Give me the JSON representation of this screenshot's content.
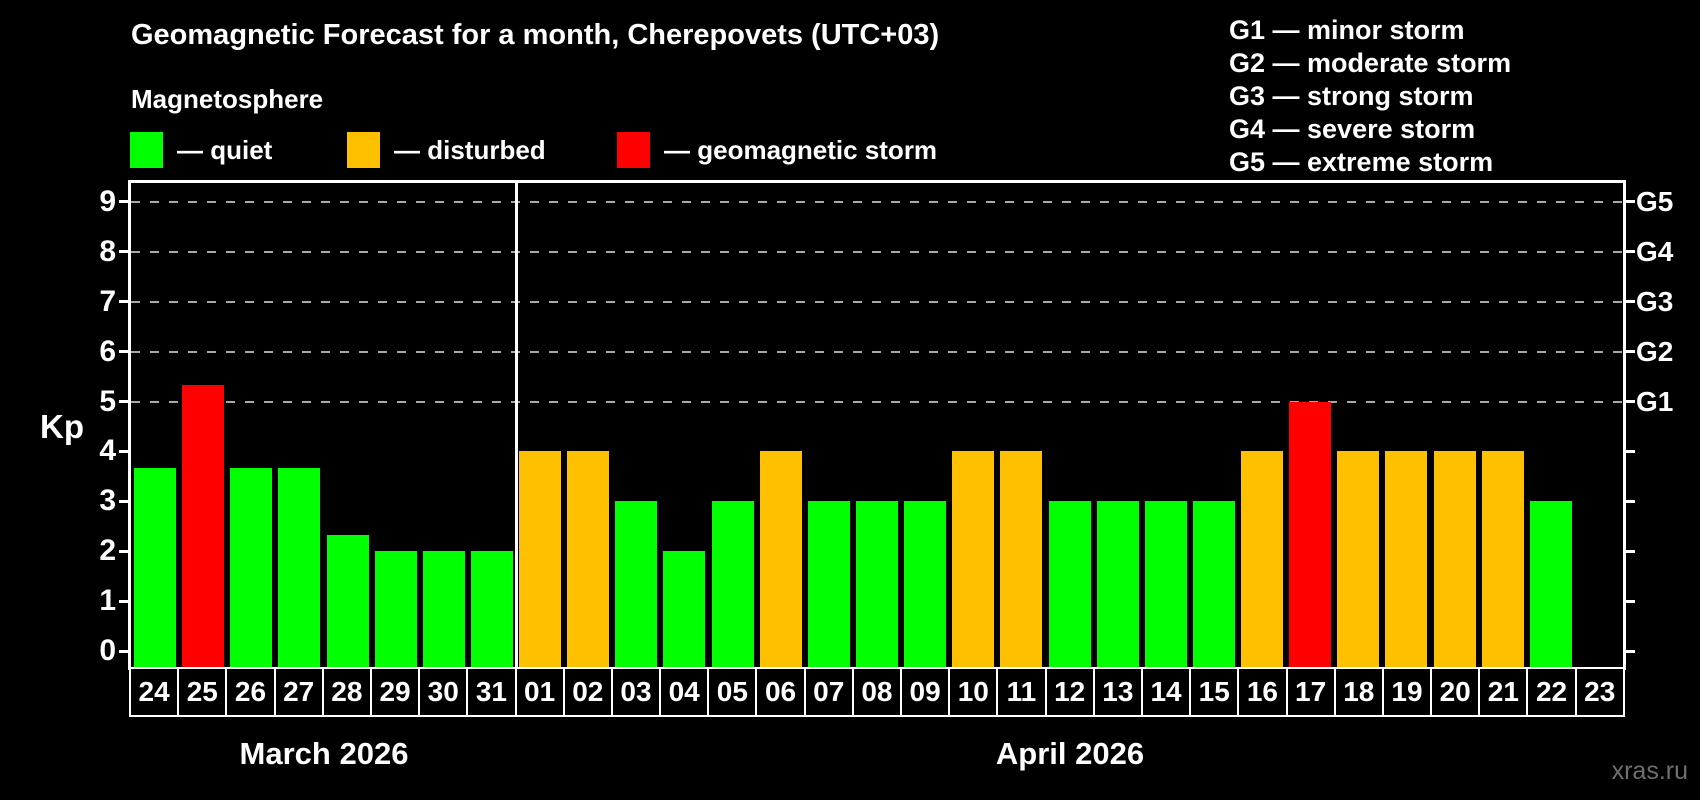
{
  "title": "Geomagnetic Forecast for a month, Cherepovets (UTC+03)",
  "subtitle": "Magnetosphere",
  "legend": {
    "items": [
      {
        "key": "quiet",
        "label": "— quiet",
        "color": "#00ff00"
      },
      {
        "key": "disturbed",
        "label": "— disturbed",
        "color": "#ffc000"
      },
      {
        "key": "storm",
        "label": "— geomagnetic storm",
        "color": "#ff0000"
      }
    ]
  },
  "g_scale_legend": [
    "G1 — minor storm",
    "G2 — moderate storm",
    "G3 — strong storm",
    "G4 — severe storm",
    "G5 — extreme storm"
  ],
  "watermark": "xras.ru",
  "chart_data": {
    "type": "bar",
    "title": "Geomagnetic Forecast for a month, Cherepovets (UTC+03)",
    "ylabel": "Kp",
    "ylim": [
      -0.32,
      9.38
    ],
    "yticks": [
      0,
      1,
      2,
      3,
      4,
      5,
      6,
      7,
      8,
      9
    ],
    "gridlines": [
      5,
      6,
      7,
      8,
      9
    ],
    "grid_style": "dashed",
    "legend_position": "top",
    "right_axis_labels": [
      {
        "value": 5,
        "label": "G1"
      },
      {
        "value": 6,
        "label": "G2"
      },
      {
        "value": 7,
        "label": "G3"
      },
      {
        "value": 8,
        "label": "G4"
      },
      {
        "value": 9,
        "label": "G5"
      }
    ],
    "colors": {
      "quiet": "#00ff00",
      "disturbed": "#ffc000",
      "storm": "#ff0000"
    },
    "months": [
      {
        "label": "March 2026",
        "days": [
          {
            "date": "24",
            "kp": 3.67,
            "status": "quiet"
          },
          {
            "date": "25",
            "kp": 5.33,
            "status": "storm"
          },
          {
            "date": "26",
            "kp": 3.67,
            "status": "quiet"
          },
          {
            "date": "27",
            "kp": 3.67,
            "status": "quiet"
          },
          {
            "date": "28",
            "kp": 2.33,
            "status": "quiet"
          },
          {
            "date": "29",
            "kp": 2,
            "status": "quiet"
          },
          {
            "date": "30",
            "kp": 2,
            "status": "quiet"
          },
          {
            "date": "31",
            "kp": 2,
            "status": "quiet"
          }
        ]
      },
      {
        "label": "April 2026",
        "days": [
          {
            "date": "01",
            "kp": 4,
            "status": "disturbed"
          },
          {
            "date": "02",
            "kp": 4,
            "status": "disturbed"
          },
          {
            "date": "03",
            "kp": 3,
            "status": "quiet"
          },
          {
            "date": "04",
            "kp": 2,
            "status": "quiet"
          },
          {
            "date": "05",
            "kp": 3,
            "status": "quiet"
          },
          {
            "date": "06",
            "kp": 4,
            "status": "disturbed"
          },
          {
            "date": "07",
            "kp": 3,
            "status": "quiet"
          },
          {
            "date": "08",
            "kp": 3,
            "status": "quiet"
          },
          {
            "date": "09",
            "kp": 3,
            "status": "quiet"
          },
          {
            "date": "10",
            "kp": 4,
            "status": "disturbed"
          },
          {
            "date": "11",
            "kp": 4,
            "status": "disturbed"
          },
          {
            "date": "12",
            "kp": 3,
            "status": "quiet"
          },
          {
            "date": "13",
            "kp": 3,
            "status": "quiet"
          },
          {
            "date": "14",
            "kp": 3,
            "status": "quiet"
          },
          {
            "date": "15",
            "kp": 3,
            "status": "quiet"
          },
          {
            "date": "16",
            "kp": 4,
            "status": "disturbed"
          },
          {
            "date": "17",
            "kp": 5,
            "status": "storm"
          },
          {
            "date": "18",
            "kp": 4,
            "status": "disturbed"
          },
          {
            "date": "19",
            "kp": 4,
            "status": "disturbed"
          },
          {
            "date": "20",
            "kp": 4,
            "status": "disturbed"
          },
          {
            "date": "21",
            "kp": 4,
            "status": "disturbed"
          },
          {
            "date": "22",
            "kp": 3,
            "status": "quiet"
          },
          {
            "date": "23",
            "kp": null,
            "status": "none"
          }
        ]
      }
    ]
  }
}
